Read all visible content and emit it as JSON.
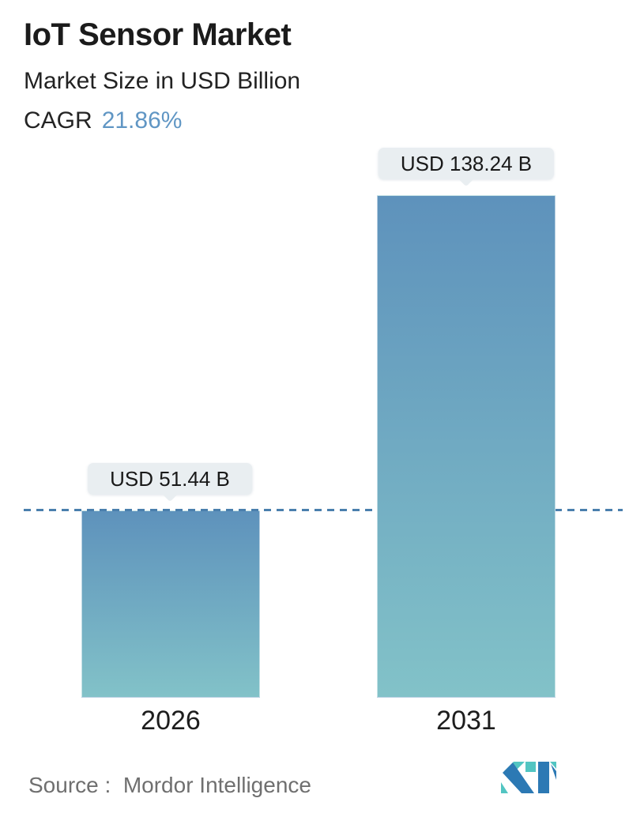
{
  "header": {
    "title": "IoT Sensor Market",
    "subtitle": "Market Size in USD Billion",
    "cagr_label": "CAGR",
    "cagr_value": "21.86%"
  },
  "chart_data": {
    "type": "bar",
    "title": "IoT Sensor Market",
    "subtitle": "Market Size in USD Billion",
    "cagr_pct": 21.86,
    "categories": [
      "2026",
      "2031"
    ],
    "values": [
      51.44,
      138.24
    ],
    "value_labels": [
      "USD 51.44 B",
      "USD 138.24 B"
    ],
    "unit": "USD Billion",
    "ylim": [
      0,
      138.24
    ],
    "grid": false,
    "annotations": [
      "horizontal dashed reference line at 2026 value (51.44)"
    ],
    "colors": {
      "bar_gradient_top": "#5e92bc",
      "bar_gradient_bottom": "#82c2c8",
      "dashed_line": "#4a7fad",
      "tooltip_bg": "#e9eef1",
      "cagr_accent": "#6096c4",
      "logo_blue": "#2c79b4",
      "logo_teal": "#52c5c2"
    }
  },
  "footer": {
    "source": "Source :  Mordor Intelligence",
    "logo_name": "mordor-intelligence-logo"
  }
}
